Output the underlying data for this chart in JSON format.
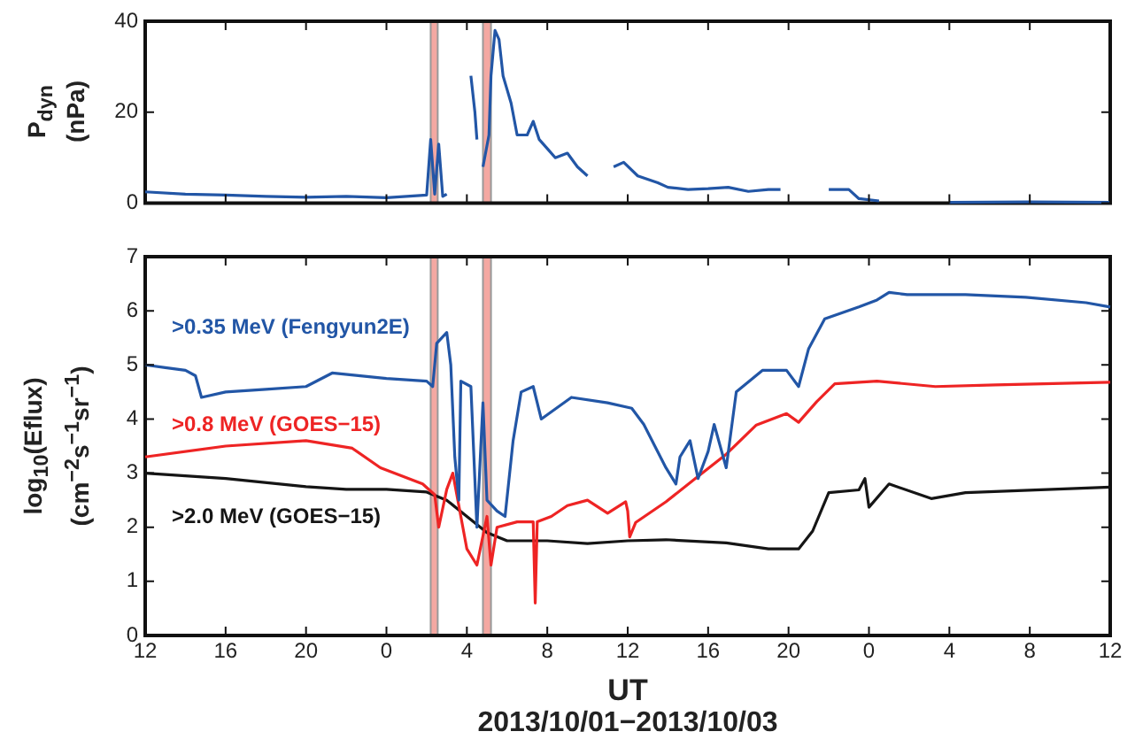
{
  "chart_data": [
    {
      "type": "line",
      "ylabel": "P$_{dyn}$\n(nPa)",
      "xlim": [
        "2013-10-01T12:00",
        "2013-10-03T12:00"
      ],
      "ylim": [
        0,
        40
      ],
      "yticks": [
        0,
        20,
        40
      ],
      "xticks": [
        "2013-10-01T12:00",
        "2013-10-01T16:00",
        "2013-10-01T20:00",
        "2013-10-02T00:00",
        "2013-10-02T04:00",
        "2013-10-02T08:00",
        "2013-10-02T12:00",
        "2013-10-02T16:00",
        "2013-10-02T20:00",
        "2013-10-03T00:00",
        "2013-10-03T04:00",
        "2013-10-03T08:00",
        "2013-10-03T12:00"
      ],
      "tick_labels": "y",
      "bands": [
        {
          "axis": "x",
          "from": "2013-10-02T02:12",
          "to": "2013-10-02T02:33",
          "color": "#f4a8a2"
        },
        {
          "axis": "x",
          "from": "2013-10-02T04:48",
          "to": "2013-10-02T05:12",
          "color": "#f4a8a2"
        }
      ],
      "series": [
        {
          "color": "#2256a6",
          "x": [
            "2013-10-01T12:00",
            "2013-10-01T14:00",
            "2013-10-01T16:00",
            "2013-10-01T18:00",
            "2013-10-01T20:00",
            "2013-10-01T22:00",
            "2013-10-02T00:00",
            "2013-10-02T02:00",
            "2013-10-02T02:12",
            "2013-10-02T02:24",
            "2013-10-02T02:36",
            "2013-10-02T02:48",
            "2013-10-02T03:00",
            "2013-10-02T03:30",
            "2013-10-02T04:12",
            "2013-10-02T04:24",
            "2013-10-02T04:30",
            "2013-10-02T04:36",
            "2013-10-02T04:48",
            "2013-10-02T05:06",
            "2013-10-02T05:12",
            "2013-10-02T05:24",
            "2013-10-02T05:36",
            "2013-10-02T05:48",
            "2013-10-02T06:00",
            "2013-10-02T06:12",
            "2013-10-02T06:30",
            "2013-10-02T07:00",
            "2013-10-02T07:18",
            "2013-10-02T07:36",
            "2013-10-02T08:00",
            "2013-10-02T08:24",
            "2013-10-02T09:00",
            "2013-10-02T09:30",
            "2013-10-02T10:00",
            "2013-10-02T10:12",
            "2013-10-02T11:18",
            "2013-10-02T11:48",
            "2013-10-02T12:30",
            "2013-10-02T13:30",
            "2013-10-02T14:00",
            "2013-10-02T15:00",
            "2013-10-02T16:00",
            "2013-10-02T17:00",
            "2013-10-02T18:00",
            "2013-10-02T19:00",
            "2013-10-02T19:36",
            "2013-10-02T20:30",
            "2013-10-02T22:00",
            "2013-10-02T23:00",
            "2013-10-02T23:30",
            "2013-10-03T00:30",
            "2013-10-03T01:00",
            "2013-10-03T04:00",
            "2013-10-03T08:00",
            "2013-10-03T12:00"
          ],
          "values": [
            2.5,
            2,
            1.8,
            1.5,
            1.3,
            1.5,
            1.2,
            1.8,
            14,
            2,
            13,
            1.5,
            2,
            null,
            28,
            20,
            14,
            null,
            8,
            15,
            28,
            38,
            36,
            28,
            25,
            22,
            15,
            15,
            18,
            14,
            12,
            10,
            11,
            8,
            6,
            null,
            8,
            9,
            6,
            4.5,
            3.5,
            3,
            3.2,
            3.5,
            2.6,
            3,
            3,
            null,
            3,
            3,
            1,
            0.5,
            null,
            0.2,
            0.3,
            0.2
          ]
        }
      ]
    },
    {
      "type": "line",
      "ylabel": "log$_{10}$(Eflux)\n(cm$^{−2}$s$^{−1}$sr$^{−1}$)",
      "xlabel": "UT",
      "annotations": [
        "2013/10/01−2013/10/03"
      ],
      "xlim": [
        "2013-10-01T12:00",
        "2013-10-03T12:00"
      ],
      "ylim": [
        0,
        7
      ],
      "yticks": [
        0,
        1,
        2,
        3,
        4,
        5,
        6,
        7
      ],
      "xticks": [
        {
          "value": "2013-10-01T12:00",
          "label": "12"
        },
        {
          "value": "2013-10-01T16:00",
          "label": "16"
        },
        {
          "value": "2013-10-01T20:00",
          "label": "20"
        },
        {
          "value": "2013-10-02T00:00",
          "label": "0"
        },
        {
          "value": "2013-10-02T04:00",
          "label": "4"
        },
        {
          "value": "2013-10-02T08:00",
          "label": "8"
        },
        {
          "value": "2013-10-02T12:00",
          "label": "12"
        },
        {
          "value": "2013-10-02T16:00",
          "label": "16"
        },
        {
          "value": "2013-10-02T20:00",
          "label": "20"
        },
        {
          "value": "2013-10-03T00:00",
          "label": "0"
        },
        {
          "value": "2013-10-03T04:00",
          "label": "4"
        },
        {
          "value": "2013-10-03T08:00",
          "label": "8"
        },
        {
          "value": "2013-10-03T12:00",
          "label": "12"
        }
      ],
      "bands": [
        {
          "axis": "x",
          "from": "2013-10-02T02:12",
          "to": "2013-10-02T02:33",
          "color": "#f4a8a2"
        },
        {
          "axis": "x",
          "from": "2013-10-02T04:48",
          "to": "2013-10-02T05:12",
          "color": "#f4a8a2"
        }
      ],
      "series": [
        {
          "name": ">0.35 MeV (Fengyun2E)",
          "color": "#2256a6",
          "x": [
            "2013-10-01T12:00",
            "2013-10-01T13:00",
            "2013-10-01T14:00",
            "2013-10-01T14:30",
            "2013-10-01T14:48",
            "2013-10-01T16:00",
            "2013-10-01T18:00",
            "2013-10-01T20:00",
            "2013-10-01T21:18",
            "2013-10-02T00:00",
            "2013-10-02T02:00",
            "2013-10-02T02:18",
            "2013-10-02T02:30",
            "2013-10-02T03:00",
            "2013-10-02T03:12",
            "2013-10-02T03:24",
            "2013-10-02T03:36",
            "2013-10-02T03:42",
            "2013-10-02T04:12",
            "2013-10-02T04:30",
            "2013-10-02T04:48",
            "2013-10-02T05:00",
            "2013-10-02T05:30",
            "2013-10-02T05:54",
            "2013-10-02T06:18",
            "2013-10-02T06:42",
            "2013-10-02T07:18",
            "2013-10-02T07:42",
            "2013-10-02T09:12",
            "2013-10-02T11:00",
            "2013-10-02T12:12",
            "2013-10-02T12:48",
            "2013-10-02T13:54",
            "2013-10-02T14:24",
            "2013-10-02T14:36",
            "2013-10-02T15:06",
            "2013-10-02T15:30",
            "2013-10-02T16:00",
            "2013-10-02T16:18",
            "2013-10-02T16:54",
            "2013-10-02T17:24",
            "2013-10-02T18:42",
            "2013-10-02T19:54",
            "2013-10-02T20:30",
            "2013-10-02T21:00",
            "2013-10-02T21:48",
            "2013-10-02T23:30",
            "2013-10-03T00:24",
            "2013-10-03T01:00",
            "2013-10-03T01:54",
            "2013-10-03T04:48",
            "2013-10-03T07:48",
            "2013-10-03T10:48",
            "2013-10-03T12:00"
          ],
          "values": [
            5.0,
            4.95,
            4.9,
            4.8,
            4.4,
            4.5,
            4.55,
            4.6,
            4.85,
            4.75,
            4.7,
            4.6,
            5.4,
            5.6,
            5.0,
            3.3,
            2.5,
            4.7,
            4.6,
            2.0,
            4.3,
            2.5,
            2.3,
            2.2,
            3.6,
            4.5,
            4.6,
            4.0,
            4.4,
            4.3,
            4.2,
            3.9,
            3.1,
            2.8,
            3.3,
            3.6,
            2.9,
            3.4,
            3.9,
            3.1,
            4.5,
            4.9,
            4.9,
            4.6,
            5.3,
            5.85,
            6.07,
            6.2,
            6.34,
            6.3,
            6.3,
            6.25,
            6.15,
            6.07
          ]
        },
        {
          "name": ">0.8 MeV (GOES−15)",
          "color": "#ee2424",
          "x": [
            "2013-10-01T12:00",
            "2013-10-01T16:00",
            "2013-10-01T20:00",
            "2013-10-01T22:18",
            "2013-10-01T23:42",
            "2013-10-02T01:48",
            "2013-10-02T02:24",
            "2013-10-02T02:36",
            "2013-10-02T03:00",
            "2013-10-02T03:18",
            "2013-10-02T03:36",
            "2013-10-02T04:00",
            "2013-10-02T04:30",
            "2013-10-02T05:00",
            "2013-10-02T05:12",
            "2013-10-02T05:30",
            "2013-10-02T06:30",
            "2013-10-02T07:18",
            "2013-10-02T07:24",
            "2013-10-02T07:30",
            "2013-10-02T08:12",
            "2013-10-02T09:00",
            "2013-10-02T10:00",
            "2013-10-02T11:00",
            "2013-10-02T11:54",
            "2013-10-02T12:00",
            "2013-10-02T12:06",
            "2013-10-02T12:24",
            "2013-10-02T13:54",
            "2013-10-02T15:24",
            "2013-10-02T16:54",
            "2013-10-02T18:24",
            "2013-10-02T19:54",
            "2013-10-02T20:30",
            "2013-10-02T21:24",
            "2013-10-02T22:18",
            "2013-10-03T00:24",
            "2013-10-03T03:18",
            "2013-10-03T06:18",
            "2013-10-03T12:00"
          ],
          "values": [
            3.3,
            3.5,
            3.6,
            3.46,
            3.1,
            2.8,
            2.6,
            2.0,
            2.7,
            3.0,
            2.4,
            1.6,
            1.3,
            2.2,
            1.3,
            2.0,
            2.1,
            2.1,
            0.6,
            2.1,
            2.2,
            2.4,
            2.5,
            2.26,
            2.47,
            2.3,
            1.82,
            2.09,
            2.47,
            2.91,
            3.35,
            3.89,
            4.1,
            3.94,
            4.32,
            4.65,
            4.7,
            4.6,
            4.63,
            4.68
          ]
        },
        {
          "name": ">2.0 MeV (GOES−15)",
          "color": "#151515",
          "x": [
            "2013-10-01T12:00",
            "2013-10-01T16:00",
            "2013-10-01T20:00",
            "2013-10-01T22:00",
            "2013-10-02T00:00",
            "2013-10-02T02:00",
            "2013-10-02T03:00",
            "2013-10-02T04:00",
            "2013-10-02T05:00",
            "2013-10-02T06:00",
            "2013-10-02T08:00",
            "2013-10-02T10:00",
            "2013-10-02T12:00",
            "2013-10-02T13:54",
            "2013-10-02T16:54",
            "2013-10-02T19:00",
            "2013-10-02T20:30",
            "2013-10-02T21:12",
            "2013-10-02T22:00",
            "2013-10-02T23:30",
            "2013-10-02T23:48",
            "2013-10-03T00:00",
            "2013-10-03T01:00",
            "2013-10-03T03:06",
            "2013-10-03T04:48",
            "2013-10-03T12:00"
          ],
          "values": [
            3.0,
            2.9,
            2.75,
            2.7,
            2.7,
            2.65,
            2.5,
            2.2,
            1.9,
            1.75,
            1.75,
            1.7,
            1.75,
            1.77,
            1.71,
            1.6,
            1.6,
            1.93,
            2.64,
            2.69,
            2.9,
            2.37,
            2.8,
            2.53,
            2.64,
            2.74
          ]
        }
      ]
    }
  ]
}
